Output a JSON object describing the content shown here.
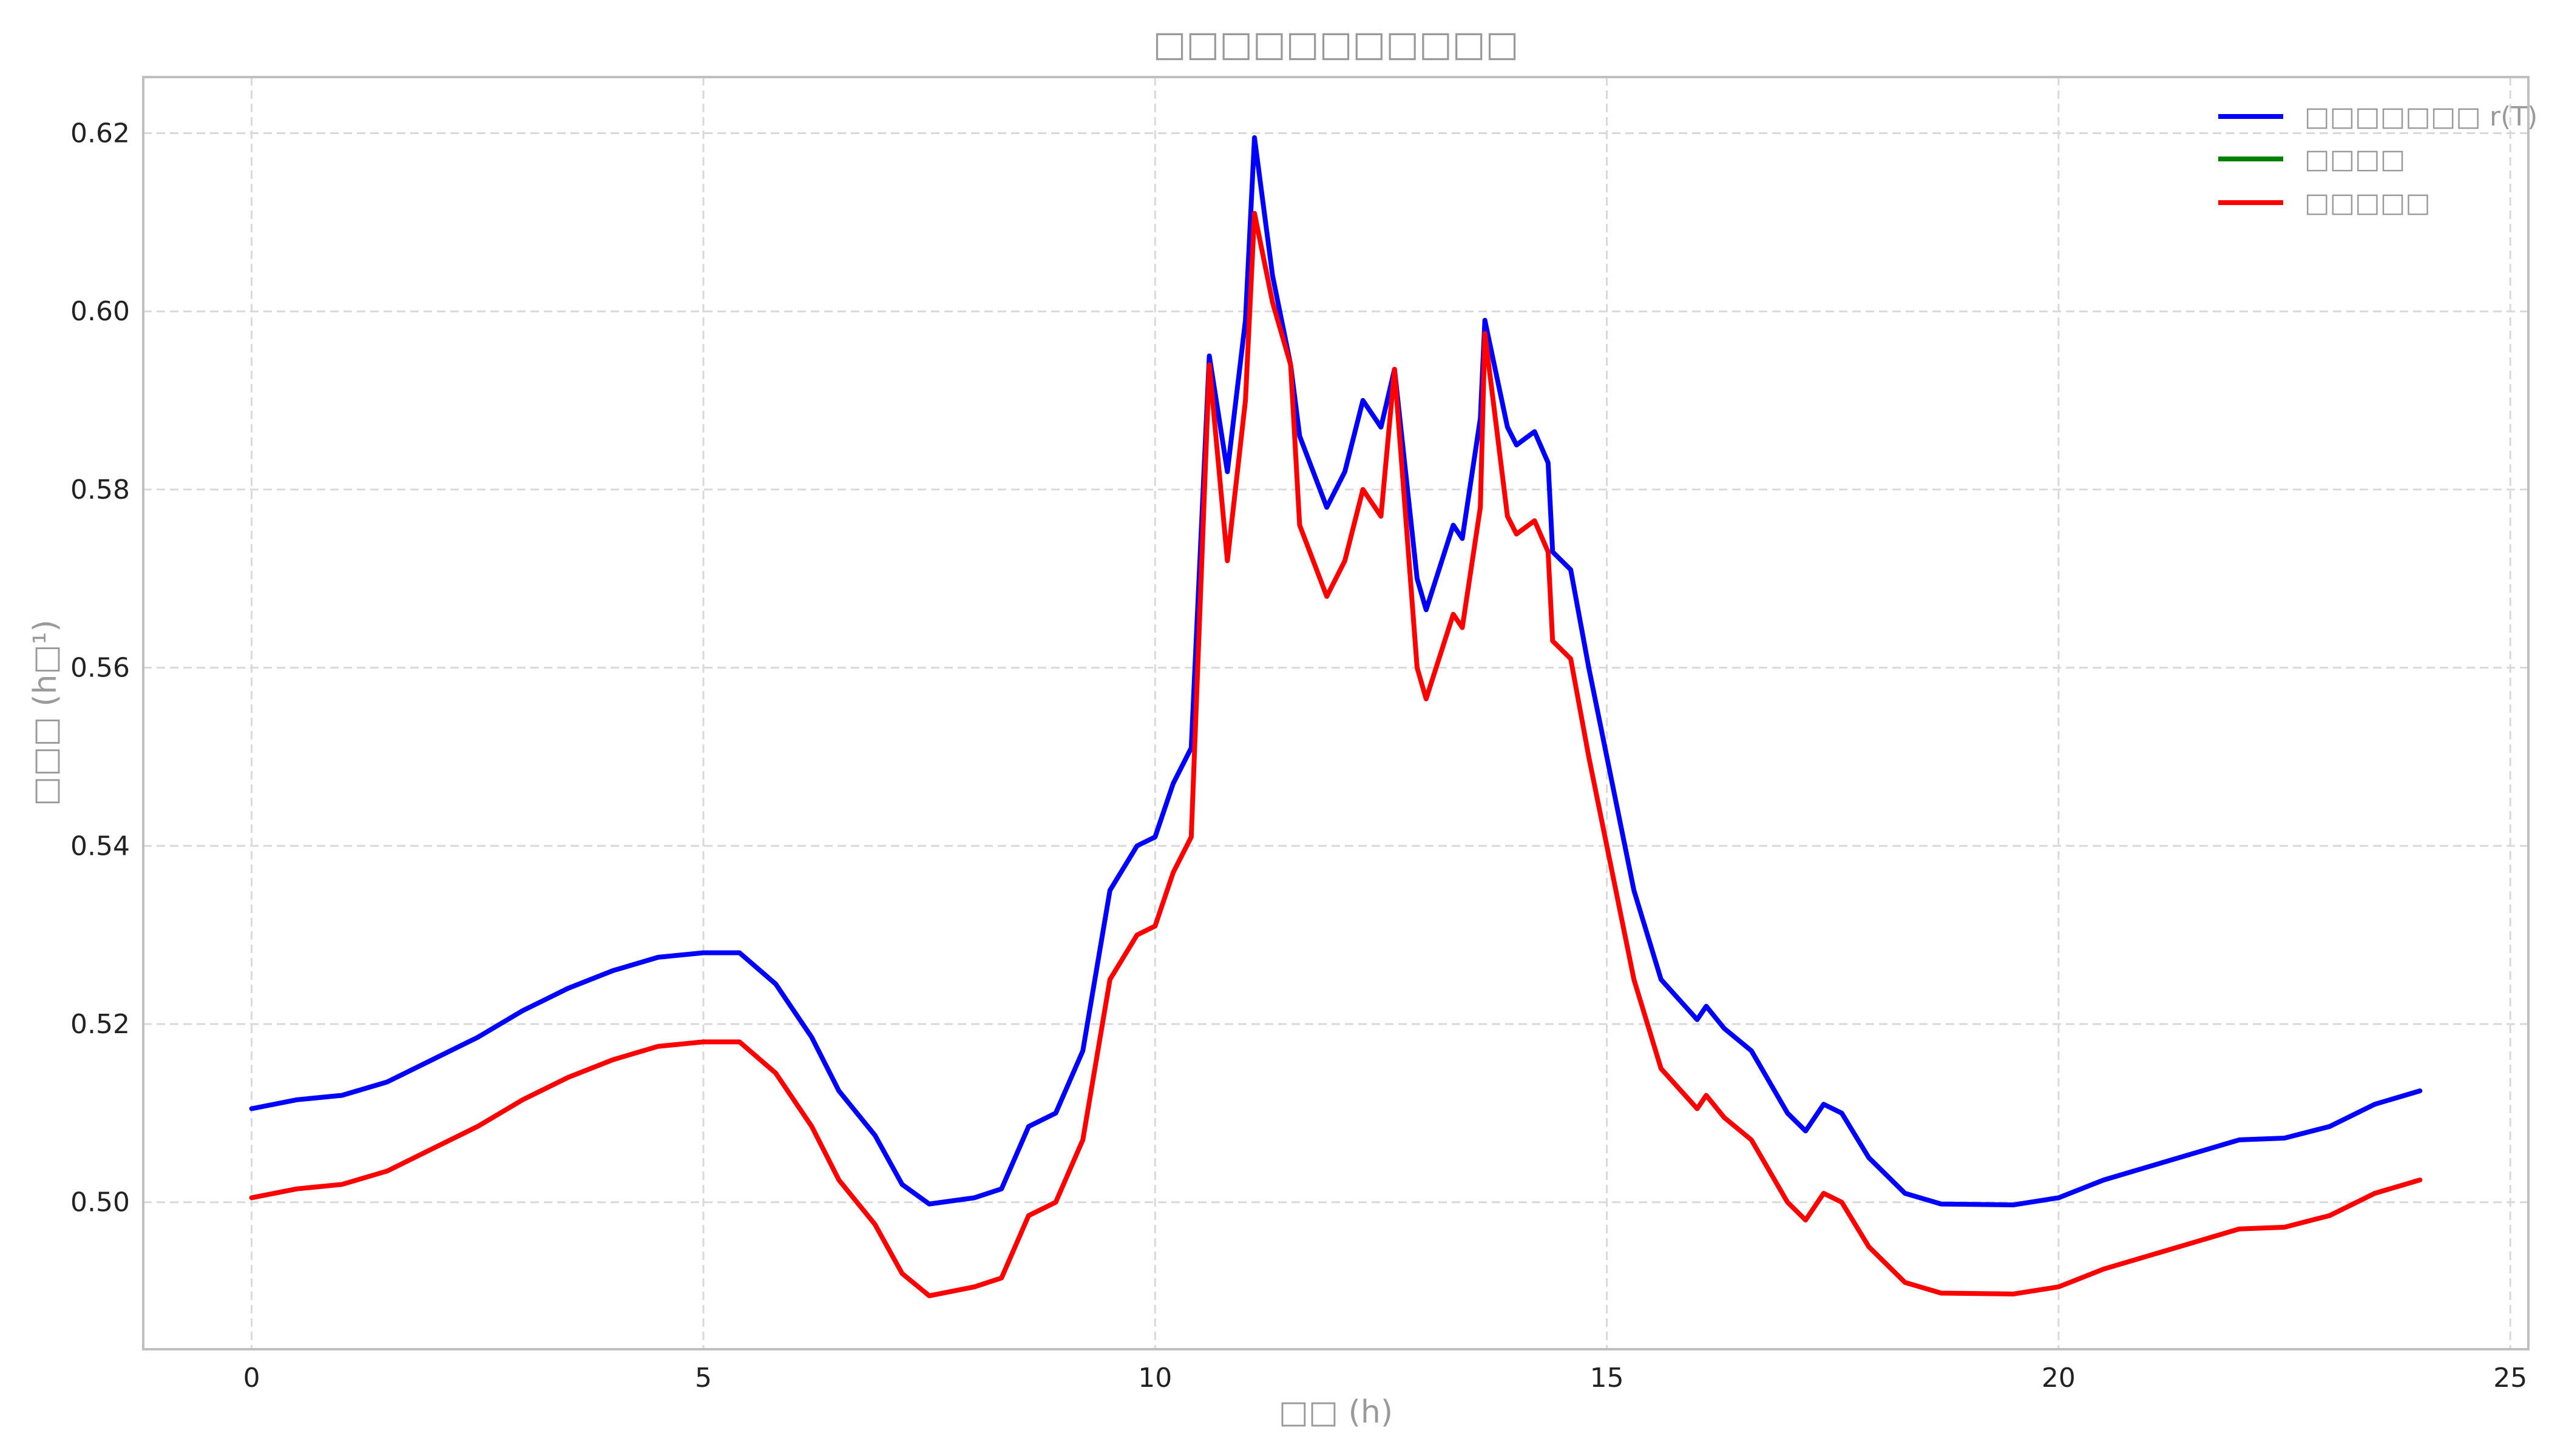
{
  "chart_data": {
    "type": "line",
    "title": "□□□□□□□□□□□",
    "xlabel": "□□ (h)",
    "ylabel": "□□□ (h□¹)",
    "xlim": [
      -1.2,
      25.2
    ],
    "ylim": [
      0.4835,
      0.6263
    ],
    "xticks": [
      0,
      5,
      10,
      15,
      20,
      25
    ],
    "xtick_labels": [
      "0",
      "5",
      "10",
      "15",
      "20",
      "25"
    ],
    "yticks": [
      0.5,
      0.52,
      0.54,
      0.56,
      0.58,
      0.6,
      0.62
    ],
    "ytick_labels": [
      "0.50",
      "0.52",
      "0.54",
      "0.56",
      "0.58",
      "0.60",
      "0.62"
    ],
    "grid": true,
    "legend_position": "top-right",
    "series": [
      {
        "name": "□□□□□□□ r(T)",
        "color": "#0000ff",
        "points": [
          [
            0,
            0.5105
          ],
          [
            0.5,
            0.5115
          ],
          [
            1.0,
            0.512
          ],
          [
            1.5,
            0.5135
          ],
          [
            2.0,
            0.516
          ],
          [
            2.5,
            0.5185
          ],
          [
            3.0,
            0.5215
          ],
          [
            3.5,
            0.524
          ],
          [
            4.0,
            0.526
          ],
          [
            4.5,
            0.5275
          ],
          [
            5.0,
            0.528
          ],
          [
            5.4,
            0.528
          ],
          [
            5.8,
            0.5245
          ],
          [
            6.2,
            0.5185
          ],
          [
            6.5,
            0.5125
          ],
          [
            6.9,
            0.5075
          ],
          [
            7.2,
            0.502
          ],
          [
            7.5,
            0.4998
          ],
          [
            8.0,
            0.5005
          ],
          [
            8.3,
            0.5015
          ],
          [
            8.6,
            0.5085
          ],
          [
            8.9,
            0.51
          ],
          [
            9.2,
            0.517
          ],
          [
            9.5,
            0.535
          ],
          [
            9.8,
            0.54
          ],
          [
            10.0,
            0.541
          ],
          [
            10.2,
            0.547
          ],
          [
            10.4,
            0.551
          ],
          [
            10.6,
            0.595
          ],
          [
            10.8,
            0.582
          ],
          [
            11.0,
            0.599
          ],
          [
            11.1,
            0.6195
          ],
          [
            11.3,
            0.604
          ],
          [
            11.5,
            0.594
          ],
          [
            11.6,
            0.586
          ],
          [
            11.9,
            0.578
          ],
          [
            12.1,
            0.582
          ],
          [
            12.3,
            0.59
          ],
          [
            12.5,
            0.587
          ],
          [
            12.65,
            0.5935
          ],
          [
            12.9,
            0.57
          ],
          [
            13.0,
            0.5665
          ],
          [
            13.3,
            0.576
          ],
          [
            13.4,
            0.5745
          ],
          [
            13.6,
            0.588
          ],
          [
            13.65,
            0.599
          ],
          [
            13.9,
            0.587
          ],
          [
            14.0,
            0.585
          ],
          [
            14.2,
            0.5865
          ],
          [
            14.35,
            0.583
          ],
          [
            14.4,
            0.573
          ],
          [
            14.6,
            0.571
          ],
          [
            14.8,
            0.56
          ],
          [
            15.0,
            0.55
          ],
          [
            15.1,
            0.545
          ],
          [
            15.3,
            0.535
          ],
          [
            15.6,
            0.525
          ],
          [
            16.0,
            0.5205
          ],
          [
            16.1,
            0.522
          ],
          [
            16.3,
            0.5195
          ],
          [
            16.6,
            0.517
          ],
          [
            16.8,
            0.5135
          ],
          [
            17.0,
            0.51
          ],
          [
            17.2,
            0.508
          ],
          [
            17.4,
            0.511
          ],
          [
            17.6,
            0.51
          ],
          [
            17.9,
            0.505
          ],
          [
            18.3,
            0.501
          ],
          [
            18.7,
            0.4998
          ],
          [
            19.5,
            0.4997
          ],
          [
            20.0,
            0.5005
          ],
          [
            20.5,
            0.5025
          ],
          [
            21.0,
            0.504
          ],
          [
            21.5,
            0.5055
          ],
          [
            22.0,
            0.507
          ],
          [
            22.5,
            0.5072
          ],
          [
            23.0,
            0.5085
          ],
          [
            23.5,
            0.511
          ],
          [
            24.0,
            0.5125
          ]
        ]
      },
      {
        "name": "□□□□",
        "color": "#008000",
        "points": []
      },
      {
        "name": "□□□□□",
        "color": "#ff0000",
        "points": [
          [
            0,
            0.5005
          ],
          [
            0.5,
            0.5015
          ],
          [
            1.0,
            0.502
          ],
          [
            1.5,
            0.5035
          ],
          [
            2.0,
            0.506
          ],
          [
            2.5,
            0.5085
          ],
          [
            3.0,
            0.5115
          ],
          [
            3.5,
            0.514
          ],
          [
            4.0,
            0.516
          ],
          [
            4.5,
            0.5175
          ],
          [
            5.0,
            0.518
          ],
          [
            5.4,
            0.518
          ],
          [
            5.8,
            0.5145
          ],
          [
            6.2,
            0.5085
          ],
          [
            6.5,
            0.5025
          ],
          [
            6.9,
            0.4975
          ],
          [
            7.2,
            0.492
          ],
          [
            7.5,
            0.4895
          ],
          [
            8.0,
            0.4905
          ],
          [
            8.3,
            0.4915
          ],
          [
            8.6,
            0.4985
          ],
          [
            8.9,
            0.5
          ],
          [
            9.2,
            0.507
          ],
          [
            9.5,
            0.525
          ],
          [
            9.8,
            0.53
          ],
          [
            10.0,
            0.531
          ],
          [
            10.2,
            0.537
          ],
          [
            10.4,
            0.541
          ],
          [
            10.6,
            0.594
          ],
          [
            10.8,
            0.572
          ],
          [
            11.0,
            0.59
          ],
          [
            11.1,
            0.611
          ],
          [
            11.3,
            0.601
          ],
          [
            11.5,
            0.594
          ],
          [
            11.6,
            0.576
          ],
          [
            11.9,
            0.568
          ],
          [
            12.1,
            0.572
          ],
          [
            12.3,
            0.58
          ],
          [
            12.5,
            0.577
          ],
          [
            12.65,
            0.5935
          ],
          [
            12.9,
            0.56
          ],
          [
            13.0,
            0.5565
          ],
          [
            13.3,
            0.566
          ],
          [
            13.4,
            0.5645
          ],
          [
            13.6,
            0.578
          ],
          [
            13.65,
            0.5975
          ],
          [
            13.9,
            0.577
          ],
          [
            14.0,
            0.575
          ],
          [
            14.2,
            0.5765
          ],
          [
            14.35,
            0.573
          ],
          [
            14.4,
            0.563
          ],
          [
            14.6,
            0.561
          ],
          [
            14.8,
            0.55
          ],
          [
            15.0,
            0.54
          ],
          [
            15.1,
            0.535
          ],
          [
            15.3,
            0.525
          ],
          [
            15.6,
            0.515
          ],
          [
            16.0,
            0.5105
          ],
          [
            16.1,
            0.512
          ],
          [
            16.3,
            0.5095
          ],
          [
            16.6,
            0.507
          ],
          [
            16.8,
            0.5035
          ],
          [
            17.0,
            0.5
          ],
          [
            17.2,
            0.498
          ],
          [
            17.4,
            0.501
          ],
          [
            17.6,
            0.5
          ],
          [
            17.9,
            0.495
          ],
          [
            18.3,
            0.491
          ],
          [
            18.7,
            0.4898
          ],
          [
            19.5,
            0.4897
          ],
          [
            20.0,
            0.4905
          ],
          [
            20.5,
            0.4925
          ],
          [
            21.0,
            0.494
          ],
          [
            21.5,
            0.4955
          ],
          [
            22.0,
            0.497
          ],
          [
            22.5,
            0.4972
          ],
          [
            23.0,
            0.4985
          ],
          [
            23.5,
            0.501
          ],
          [
            24.0,
            0.5025
          ]
        ]
      }
    ]
  }
}
